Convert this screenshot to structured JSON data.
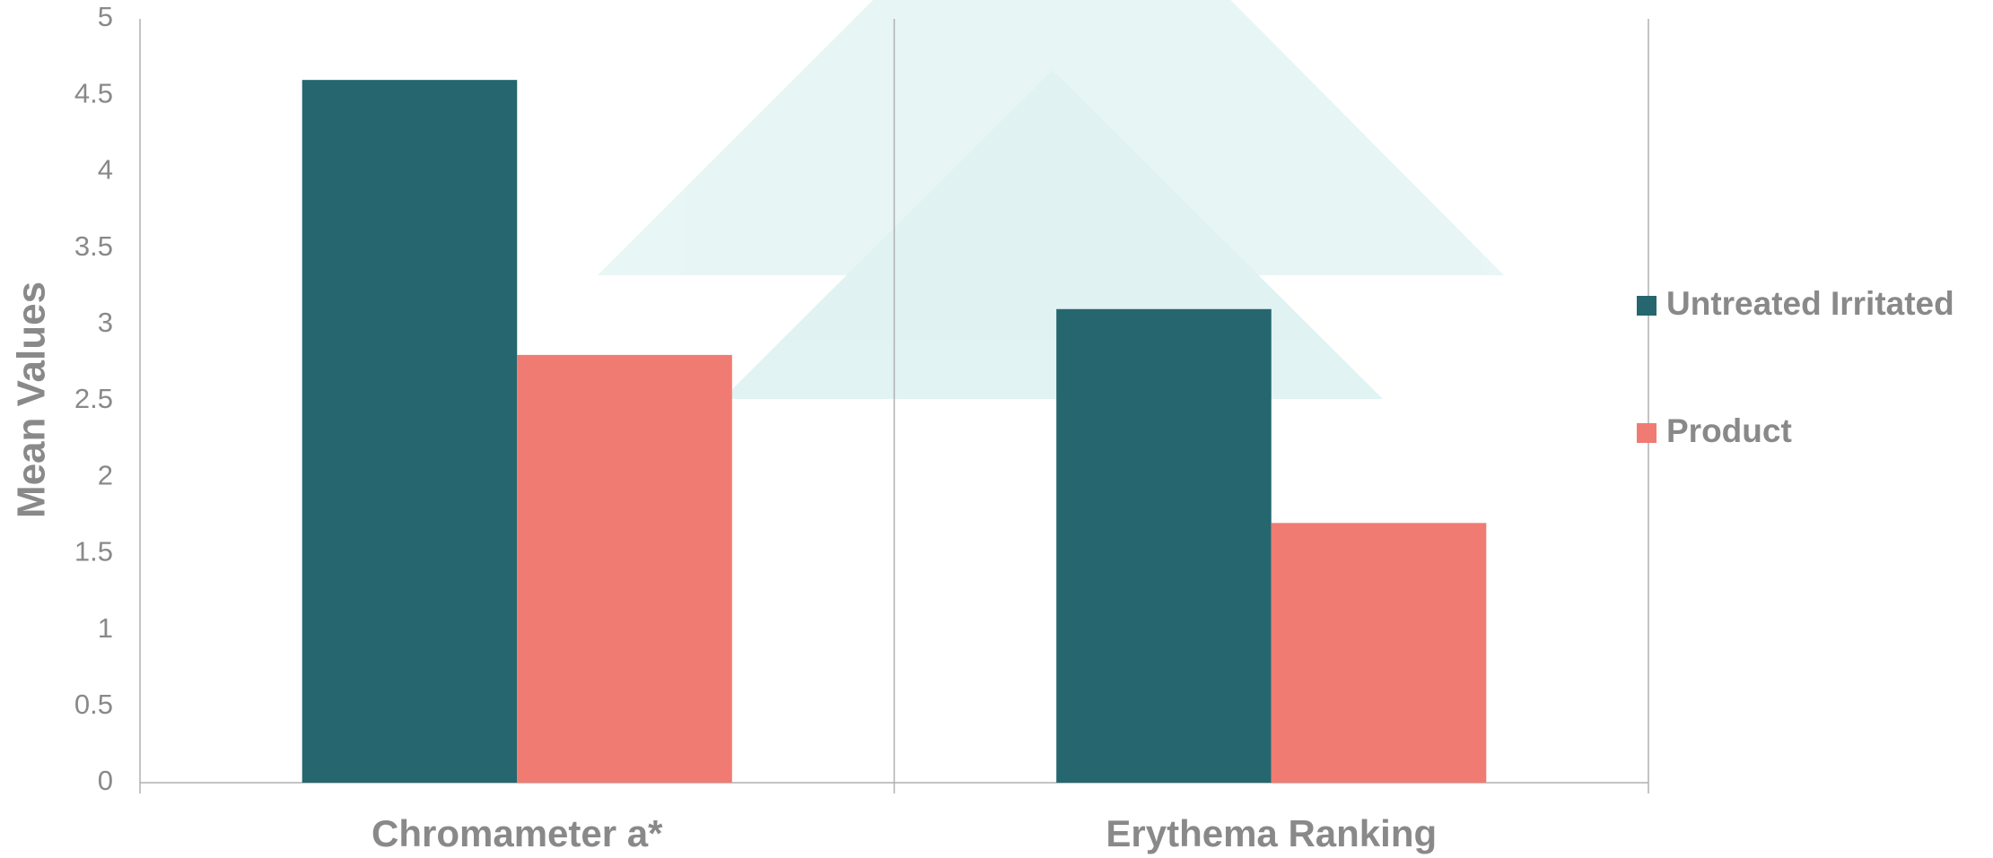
{
  "chart_data": {
    "type": "bar",
    "y_label": "Mean Values",
    "categories": [
      "Chromameter a*",
      "Erythema Ranking"
    ],
    "series": [
      {
        "name": "Untreated Irritated",
        "color": "#26666e",
        "values": [
          4.6,
          3.1
        ]
      },
      {
        "name": "Product",
        "color": "#f07b72",
        "values": [
          2.8,
          1.7
        ]
      }
    ],
    "ylim": [
      0,
      5
    ],
    "yticks": [
      0,
      0.5,
      1,
      1.5,
      2,
      2.5,
      3,
      3.5,
      4,
      4.5,
      5
    ],
    "grid": false,
    "legend": "right"
  }
}
